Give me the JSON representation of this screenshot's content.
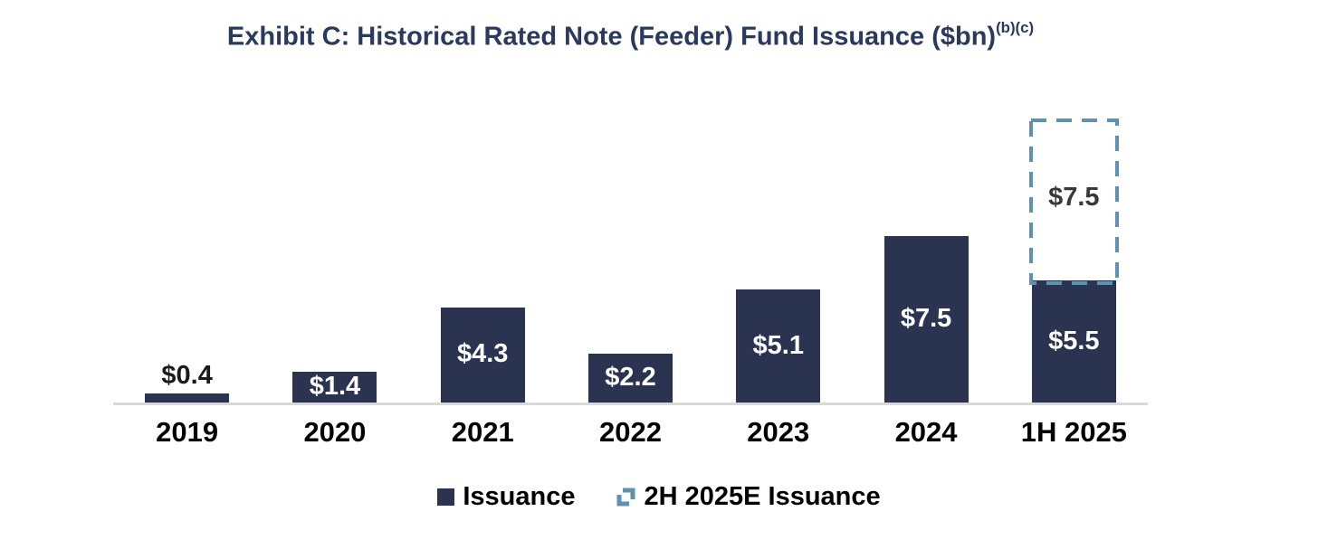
{
  "chart_data": {
    "type": "bar",
    "title": "Exhibit C: Historical Rated Note (Feeder) Fund Issuance ($bn)",
    "title_superscript": "(b)(c)",
    "categories": [
      "2019",
      "2020",
      "2021",
      "2022",
      "2023",
      "2024",
      "1H 2025"
    ],
    "series": [
      {
        "name": "Issuance",
        "style": "solid",
        "color": "#2a3451",
        "values": [
          0.4,
          1.4,
          4.3,
          2.2,
          5.1,
          7.5,
          5.5
        ],
        "labels": [
          "$0.4",
          "$1.4",
          "$4.3",
          "$2.2",
          "$5.1",
          "$7.5",
          "$5.5"
        ]
      },
      {
        "name": "2H 2025E Issuance",
        "style": "dashed",
        "color": "#5f92b0",
        "values": [
          null,
          null,
          null,
          null,
          null,
          null,
          7.5
        ],
        "labels": [
          null,
          null,
          null,
          null,
          null,
          null,
          "$7.5"
        ]
      }
    ],
    "stacked": true,
    "ylim": [
      0,
      14.5
    ],
    "grid": false,
    "axis_line_color": "#d9d9d9",
    "legend_position": "bottom",
    "label_color_inside": "#ffffff",
    "label_color_outside": "#1a1a1a",
    "estimate_label_color": "#383838"
  },
  "legend": {
    "items": [
      {
        "label": "Issuance",
        "marker": "solid-square-icon",
        "color": "#2a3451"
      },
      {
        "label": "2H 2025E Issuance",
        "marker": "dashed-square-icon",
        "color": "#5f92b0"
      }
    ]
  }
}
